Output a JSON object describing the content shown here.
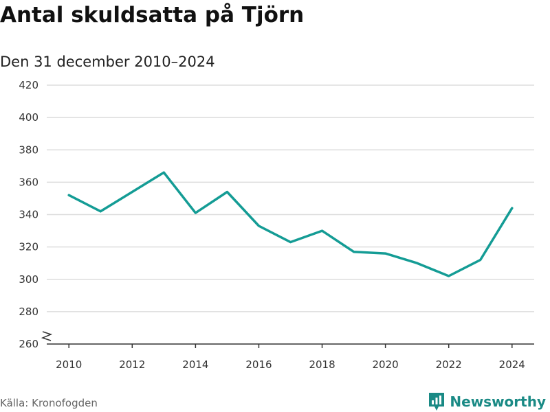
{
  "title": "Antal skuldsatta på Tjörn",
  "subtitle": "Den 31 december 2010–2024",
  "source": "Källa: Kronofogden",
  "brand": "Newsworthy",
  "colors": {
    "line": "#149c95",
    "grid": "#dddddd",
    "axis": "#333333",
    "brand": "#1a8a85"
  },
  "chart_data": {
    "type": "line",
    "title": "Antal skuldsatta på Tjörn",
    "subtitle": "Den 31 december 2010–2024",
    "xlabel": "",
    "ylabel": "",
    "x": [
      2010,
      2011,
      2012,
      2013,
      2014,
      2015,
      2016,
      2017,
      2018,
      2019,
      2020,
      2021,
      2022,
      2023,
      2024
    ],
    "series": [
      {
        "name": "Antal skuldsatta",
        "values": [
          352,
          342,
          354,
          366,
          341,
          354,
          333,
          323,
          330,
          317,
          316,
          310,
          302,
          312,
          344
        ]
      }
    ],
    "ylim": [
      260,
      420
    ],
    "yticks": [
      260,
      280,
      300,
      320,
      340,
      360,
      380,
      400,
      420
    ],
    "xlim": [
      2009.3,
      2024.7
    ],
    "xticks": [
      2010,
      2012,
      2014,
      2016,
      2018,
      2020,
      2022,
      2024
    ],
    "grid": true,
    "axis_break": true
  }
}
